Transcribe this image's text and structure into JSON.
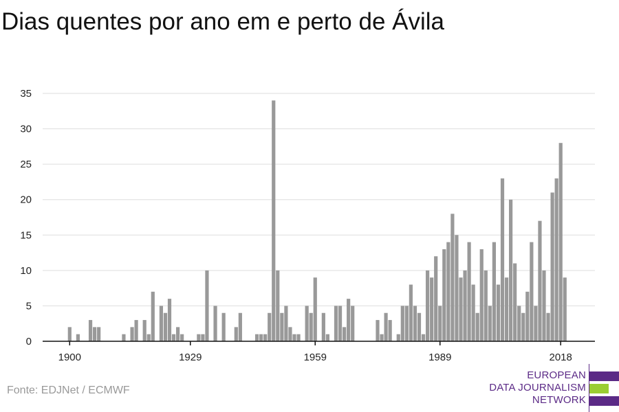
{
  "header": {
    "title": "Dias quentes por ano em e perto de Ávila"
  },
  "footer": {
    "source": "Fonte: EDJNet / ECMWF"
  },
  "logo": {
    "lines": [
      "EUROPEAN",
      "DATA JOURNALISM",
      "NETWORK"
    ],
    "colors": {
      "purple": "#5b2a86",
      "green": "#9acd32"
    }
  },
  "chart_data": {
    "type": "bar",
    "title": "Dias quentes por ano em e perto de Ávila",
    "xlabel": "",
    "ylabel": "",
    "x_start": 1900,
    "x_end": 2019,
    "xticks": [
      1900,
      1929,
      1959,
      1989,
      2018
    ],
    "yticks": [
      0,
      5,
      10,
      15,
      20,
      25,
      30,
      35
    ],
    "ylim": [
      0,
      35
    ],
    "grid": true,
    "bar_color": "#999999",
    "values": [
      2,
      0,
      1,
      0,
      0,
      3,
      2,
      2,
      0,
      0,
      0,
      0,
      0,
      1,
      0,
      2,
      3,
      0,
      3,
      1,
      7,
      0,
      5,
      4,
      6,
      1,
      2,
      1,
      0,
      0,
      0,
      1,
      1,
      10,
      0,
      5,
      0,
      4,
      0,
      0,
      2,
      4,
      0,
      0,
      0,
      1,
      1,
      1,
      4,
      34,
      10,
      4,
      5,
      2,
      1,
      1,
      0,
      5,
      4,
      9,
      0,
      4,
      1,
      0,
      5,
      5,
      2,
      6,
      5,
      0,
      0,
      0,
      0,
      0,
      3,
      1,
      4,
      3,
      0,
      1,
      5,
      5,
      8,
      5,
      4,
      1,
      10,
      9,
      12,
      5,
      13,
      14,
      18,
      15,
      9,
      10,
      14,
      8,
      4,
      13,
      10,
      5,
      14,
      8,
      23,
      9,
      20,
      11,
      5,
      4,
      7,
      14,
      5,
      17,
      10,
      4,
      21,
      23,
      28,
      9
    ]
  }
}
